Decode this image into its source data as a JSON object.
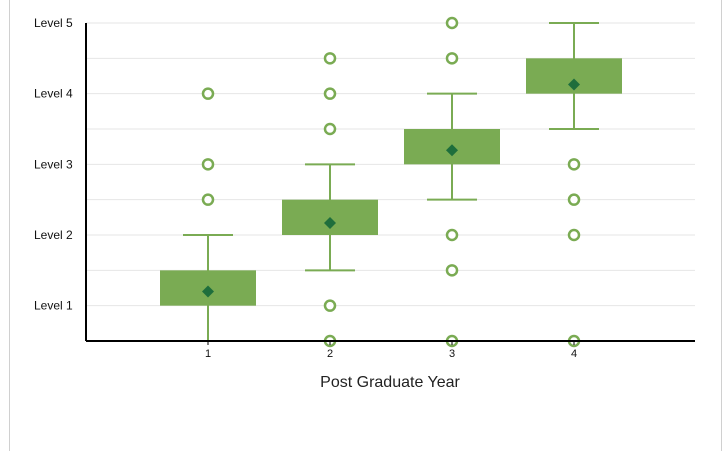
{
  "chart_data": {
    "type": "box",
    "xlabel": "Post Graduate Year",
    "ylabel": "",
    "categories": [
      "1",
      "2",
      "3",
      "4"
    ],
    "y_tick_labels": [
      "Level 1",
      "Level 2",
      "Level 3",
      "Level 4",
      "Level 5"
    ],
    "y_tick_values": [
      1,
      2,
      3,
      4,
      5
    ],
    "ylim": [
      0.5,
      5
    ],
    "grid": true,
    "colors": {
      "box": "#7aab53",
      "whisker": "#7aab53",
      "mean_marker": "#1e6e3c",
      "outlier": "#7aab53",
      "gridline": "#e6e6e6",
      "axis": "#000000"
    },
    "boxes": [
      {
        "category": "1",
        "whisker_low": 0.5,
        "q1": 1.0,
        "q3": 1.5,
        "whisker_high": 2.0,
        "mean": 1.2,
        "outliers": [
          2.5,
          3.0,
          4.0
        ]
      },
      {
        "category": "2",
        "whisker_low": 1.5,
        "q1": 2.0,
        "q3": 2.5,
        "whisker_high": 3.0,
        "mean": 2.17,
        "outliers": [
          0.5,
          1.0,
          3.5,
          4.0,
          4.5
        ]
      },
      {
        "category": "3",
        "whisker_low": 2.5,
        "q1": 3.0,
        "q3": 3.5,
        "whisker_high": 4.0,
        "mean": 3.2,
        "outliers": [
          0.5,
          1.5,
          2.0,
          4.5,
          5.0
        ]
      },
      {
        "category": "4",
        "whisker_low": 3.5,
        "q1": 4.0,
        "q3": 4.5,
        "whisker_high": 5.0,
        "mean": 4.13,
        "outliers": [
          0.5,
          2.0,
          2.5,
          3.0
        ]
      }
    ]
  }
}
